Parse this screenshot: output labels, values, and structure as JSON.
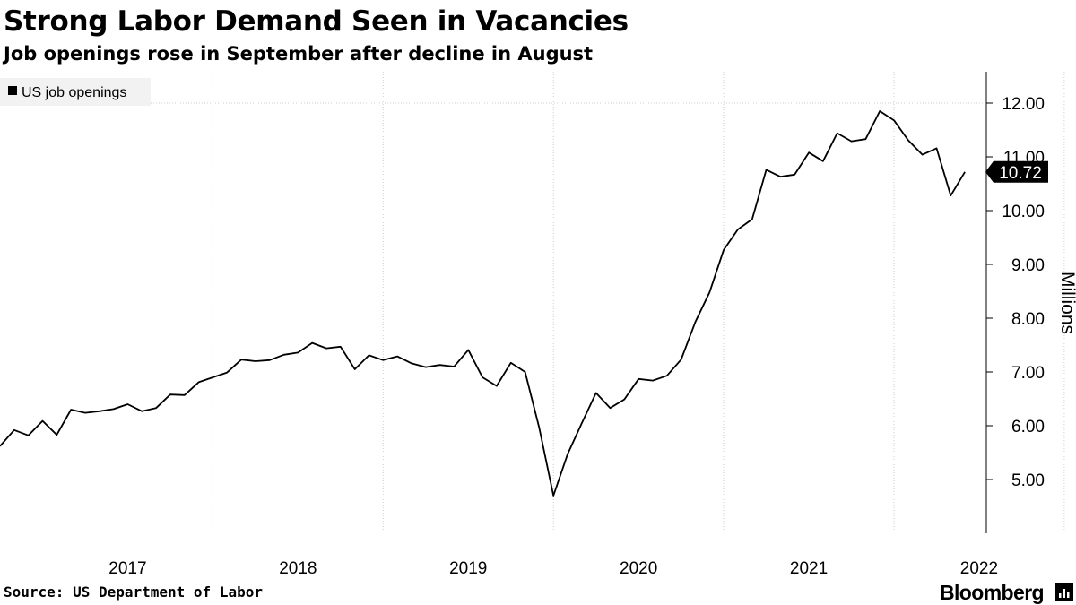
{
  "header": {
    "title": "Strong Labor Demand Seen in Vacancies",
    "subtitle": "Job openings rose in September after decline in August"
  },
  "footer": {
    "source": "Source: US Department of Labor",
    "brand": "Bloomberg",
    "brand_icon": "terminal-icon"
  },
  "colors": {
    "line": "#000000",
    "grid": "#cfcfcf",
    "axis": "#000000",
    "label_bg": "#000000",
    "label_fg": "#ffffff",
    "legend_bg": "#f2f2f2"
  },
  "chart_data": {
    "type": "line",
    "title": "Strong Labor Demand Seen in Vacancies",
    "subtitle": "Job openings rose in September after decline in August",
    "ylabel": "Millions",
    "xlabel": "",
    "ylim": [
      4.0,
      12.6
    ],
    "yticks": [
      5.0,
      6.0,
      7.0,
      8.0,
      9.0,
      10.0,
      11.0,
      12.0
    ],
    "ytick_labels": [
      "5.00",
      "6.00",
      "7.00",
      "8.00",
      "9.00",
      "10.00",
      "11.00",
      "12.00"
    ],
    "y_axis_position": "right",
    "xticks": [
      "2017",
      "2018",
      "2019",
      "2020",
      "2021",
      "2022"
    ],
    "x_range": [
      "2016-10",
      "2022-09"
    ],
    "grid": "dotted vertical lines at year boundaries, dotted horizontal line at 12.00",
    "legend": "top-left",
    "series": [
      {
        "name": "US job openings",
        "last_value_label": "10.72",
        "points": [
          [
            "2016-10",
            5.62
          ],
          [
            "2016-11",
            5.92
          ],
          [
            "2016-12",
            5.82
          ],
          [
            "2017-01",
            6.09
          ],
          [
            "2017-02",
            5.83
          ],
          [
            "2017-03",
            6.3
          ],
          [
            "2017-04",
            6.24
          ],
          [
            "2017-05",
            6.27
          ],
          [
            "2017-06",
            6.31
          ],
          [
            "2017-07",
            6.4
          ],
          [
            "2017-08",
            6.27
          ],
          [
            "2017-09",
            6.33
          ],
          [
            "2017-10",
            6.58
          ],
          [
            "2017-11",
            6.57
          ],
          [
            "2017-12",
            6.81
          ],
          [
            "2018-01",
            6.9
          ],
          [
            "2018-02",
            6.99
          ],
          [
            "2018-03",
            7.23
          ],
          [
            "2018-04",
            7.2
          ],
          [
            "2018-05",
            7.22
          ],
          [
            "2018-06",
            7.32
          ],
          [
            "2018-07",
            7.36
          ],
          [
            "2018-08",
            7.54
          ],
          [
            "2018-09",
            7.44
          ],
          [
            "2018-10",
            7.47
          ],
          [
            "2018-11",
            7.05
          ],
          [
            "2018-12",
            7.31
          ],
          [
            "2019-01",
            7.22
          ],
          [
            "2019-02",
            7.29
          ],
          [
            "2019-03",
            7.16
          ],
          [
            "2019-04",
            7.09
          ],
          [
            "2019-05",
            7.13
          ],
          [
            "2019-06",
            7.1
          ],
          [
            "2019-07",
            7.41
          ],
          [
            "2019-08",
            6.9
          ],
          [
            "2019-09",
            6.74
          ],
          [
            "2019-10",
            7.17
          ],
          [
            "2019-11",
            7.0
          ],
          [
            "2019-12",
            5.96
          ],
          [
            "2020-01",
            4.7
          ],
          [
            "2020-02",
            5.47
          ],
          [
            "2020-03",
            6.05
          ],
          [
            "2020-04",
            6.61
          ],
          [
            "2020-05",
            6.33
          ],
          [
            "2020-06",
            6.49
          ],
          [
            "2020-07",
            6.87
          ],
          [
            "2020-08",
            6.84
          ],
          [
            "2020-09",
            6.93
          ],
          [
            "2020-10",
            7.23
          ],
          [
            "2020-11",
            7.93
          ],
          [
            "2020-12",
            8.48
          ],
          [
            "2021-01",
            9.27
          ],
          [
            "2021-02",
            9.65
          ],
          [
            "2021-03",
            9.84
          ],
          [
            "2021-04",
            10.76
          ],
          [
            "2021-05",
            10.63
          ],
          [
            "2021-06",
            10.67
          ],
          [
            "2021-07",
            11.08
          ],
          [
            "2021-08",
            10.92
          ],
          [
            "2021-09",
            11.44
          ],
          [
            "2021-10",
            11.29
          ],
          [
            "2021-11",
            11.33
          ],
          [
            "2021-12",
            11.85
          ],
          [
            "2022-01",
            11.68
          ],
          [
            "2022-02",
            11.31
          ],
          [
            "2022-03",
            11.04
          ],
          [
            "2022-04",
            11.16
          ],
          [
            "2022-05",
            10.28
          ],
          [
            "2022-06",
            10.72
          ]
        ]
      }
    ]
  }
}
